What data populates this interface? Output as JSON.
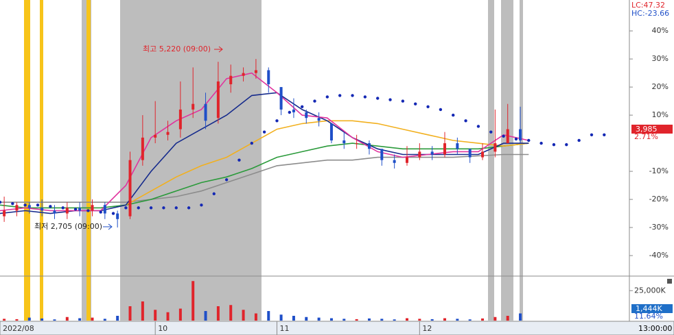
{
  "chart_data": {
    "type": "stock",
    "lc_label": "LC:47.32",
    "hc_label": "HC:-23.66",
    "high_label": "최고 5,220 (09:00)",
    "low_label": "최저 2,705 (09:00)",
    "time_label": "13:00:00",
    "last_price": "3,985",
    "last_change": {
      "value": 2.71,
      "label": "2.71%"
    },
    "xlim": [
      0,
      150
    ],
    "xticks": [
      {
        "value": 0,
        "label": "2022/08"
      },
      {
        "value": 37,
        "label": "10"
      },
      {
        "value": 66,
        "label": "11"
      },
      {
        "value": 100,
        "label": "12"
      }
    ],
    "ylim": [
      -47.3,
      51
    ],
    "yticks": [
      {
        "value": 40,
        "label": "40%"
      },
      {
        "value": 30,
        "label": "30%"
      },
      {
        "value": 20,
        "label": "20%"
      },
      {
        "value": 10,
        "label": "10%"
      },
      {
        "value": -10,
        "label": "-10%"
      },
      {
        "value": -20,
        "label": "-20%"
      },
      {
        "value": -30,
        "label": "-30%"
      },
      {
        "value": -40,
        "label": "-40%"
      }
    ],
    "up_color": "#e0242b",
    "down_color": "#1f4fc8",
    "candles": {
      "x": [
        1,
        4,
        7,
        10,
        13,
        16,
        19,
        22,
        25,
        28,
        31,
        34,
        37,
        40,
        43,
        46,
        49,
        52,
        55,
        58,
        61,
        64,
        67,
        70,
        73,
        76,
        79,
        82,
        85,
        88,
        91,
        94,
        97,
        100,
        103,
        106,
        109,
        112,
        115,
        118,
        121,
        124
      ],
      "open": [
        -26,
        -24,
        -22,
        -23,
        -24,
        -25,
        -23,
        -24,
        -22,
        -25,
        -26,
        -6,
        2,
        3,
        5,
        12,
        14,
        9,
        21,
        24,
        25,
        26,
        20,
        12,
        11,
        9,
        7,
        1,
        0,
        0,
        -2,
        -6,
        -7,
        -5,
        -3,
        -4,
        0,
        -2,
        -5,
        -3,
        0,
        5
      ],
      "close": [
        -24,
        -22,
        -23,
        -24,
        -25,
        -23,
        -24,
        -22,
        -25,
        -27,
        -6,
        2,
        3,
        4,
        12,
        14,
        8,
        22,
        24,
        25,
        26,
        21,
        12,
        11,
        9,
        8,
        1,
        0,
        0,
        -2,
        -6,
        -7,
        -5,
        -3,
        -4,
        0,
        -2,
        -5,
        -3,
        0,
        5,
        1
      ],
      "high": [
        -19,
        -21,
        -21,
        -20,
        -22,
        -21,
        -21,
        -20,
        -21,
        -24,
        -3,
        10,
        15,
        8,
        22,
        27,
        18,
        29,
        28,
        27,
        30,
        27,
        20,
        16,
        12,
        11,
        6,
        4,
        3,
        1,
        -2,
        -4,
        -1,
        0,
        -1,
        4,
        2,
        -2,
        0,
        12,
        14,
        13
      ],
      "low": [
        -28,
        -26,
        -25,
        -26,
        -27,
        -27,
        -26,
        -26,
        -27,
        -30,
        -27,
        -8,
        0,
        1,
        2,
        9,
        5,
        7,
        18,
        22,
        23,
        18,
        10,
        9,
        7,
        6,
        0,
        -2,
        -2,
        -4,
        -8,
        -9,
        -8,
        -6,
        -6,
        -5,
        -4,
        -7,
        -6,
        -5,
        0,
        0
      ]
    },
    "series": [
      {
        "kind": "line",
        "color": "#8c8c8c",
        "x": [
          0,
          6,
          12,
          18,
          24,
          30,
          36,
          42,
          48,
          54,
          60,
          66,
          72,
          78,
          84,
          90,
          96,
          102,
          108,
          114,
          120,
          126
        ],
        "values": [
          -21,
          -21,
          -21,
          -21,
          -21,
          -21,
          -20,
          -19,
          -17,
          -14,
          -11,
          -8,
          -7,
          -6,
          -6,
          -5,
          -5,
          -5,
          -5,
          -4.5,
          -4,
          -4
        ]
      },
      {
        "kind": "line",
        "color": "#2a9a3a",
        "x": [
          0,
          6,
          12,
          18,
          24,
          30,
          36,
          42,
          48,
          54,
          60,
          66,
          72,
          78,
          84,
          90,
          96,
          102,
          108,
          114,
          120,
          126
        ],
        "values": [
          -22,
          -23,
          -23,
          -23,
          -23,
          -22,
          -20,
          -17,
          -14,
          -12,
          -9,
          -5,
          -3,
          -1,
          0,
          -1,
          -2,
          -2,
          -2,
          -2,
          -1,
          0
        ]
      },
      {
        "kind": "line",
        "color": "#f2b01e",
        "x": [
          30,
          36,
          42,
          48,
          54,
          60,
          66,
          72,
          78,
          84,
          90,
          96,
          102,
          108,
          114,
          120,
          126
        ],
        "values": [
          -22,
          -17,
          -12,
          -8,
          -5,
          0,
          5,
          7,
          8,
          8,
          7,
          5,
          3,
          1,
          0,
          -1,
          0
        ]
      },
      {
        "kind": "line",
        "color": "#152a8c",
        "x": [
          0,
          6,
          12,
          18,
          24,
          30,
          36,
          42,
          48,
          54,
          60,
          66,
          72,
          78,
          84,
          90,
          96,
          102,
          108,
          114,
          120,
          126
        ],
        "values": [
          -25,
          -24,
          -25,
          -24,
          -24,
          -22,
          -10,
          0,
          5,
          10,
          17,
          18,
          12,
          8,
          2,
          -2,
          -4,
          -4,
          -4,
          -4,
          0,
          0
        ]
      },
      {
        "kind": "line",
        "color": "#e0339e",
        "x": [
          0,
          6,
          12,
          18,
          24,
          30,
          36,
          42,
          48,
          54,
          60,
          66,
          72,
          78,
          84,
          90,
          96,
          102,
          108,
          114,
          120,
          126
        ],
        "values": [
          -24,
          -23,
          -24,
          -24,
          -24,
          -15,
          2,
          8,
          12,
          23,
          25,
          18,
          10,
          9,
          2,
          -3,
          -5,
          -4,
          -3,
          -3,
          3,
          1
        ]
      },
      {
        "kind": "dots",
        "color": "#1428b4",
        "x": [
          0,
          3,
          6,
          9,
          12,
          15,
          18,
          21,
          24,
          27,
          30,
          33,
          36,
          39,
          42,
          45,
          48,
          51,
          54,
          57,
          60,
          63,
          66,
          69,
          72,
          75,
          78,
          81,
          84,
          87,
          90,
          93,
          96,
          99,
          102,
          105,
          108,
          111,
          114,
          117,
          120,
          123,
          126,
          129,
          132,
          135,
          138,
          141,
          144
        ],
        "values": [
          -21,
          -21.5,
          -22,
          -22,
          -22.5,
          -23,
          -23.5,
          -24,
          -24.5,
          -25,
          -23,
          -23,
          -23,
          -23,
          -23,
          -23,
          -22,
          -18,
          -13,
          -6,
          0,
          4,
          8,
          11,
          13,
          15,
          16.5,
          17,
          17,
          16.5,
          16,
          15.5,
          15,
          14,
          13,
          12,
          10,
          8,
          6,
          4,
          2.5,
          1.5,
          1,
          0,
          -0.5,
          -0.5,
          1,
          3,
          3
        ]
      }
    ],
    "volume": {
      "values": [
        1500,
        1200,
        2500,
        1800,
        1000,
        3000,
        2000,
        2500,
        1500,
        4000,
        12000,
        16000,
        9000,
        7000,
        10000,
        33000,
        8000,
        12000,
        13000,
        9000,
        6000,
        8000,
        5000,
        4000,
        3000,
        2500,
        2000,
        1500,
        1200,
        1800,
        1500,
        1000,
        2000,
        1500,
        1200,
        2000,
        1500,
        1000,
        1800,
        3000,
        4000,
        6000
      ],
      "ylim": [
        0,
        36000
      ],
      "yticks": [
        {
          "value": 25000,
          "label": "25,000K"
        }
      ],
      "last_label": "1,444K",
      "last_pct": "11.64%"
    }
  }
}
